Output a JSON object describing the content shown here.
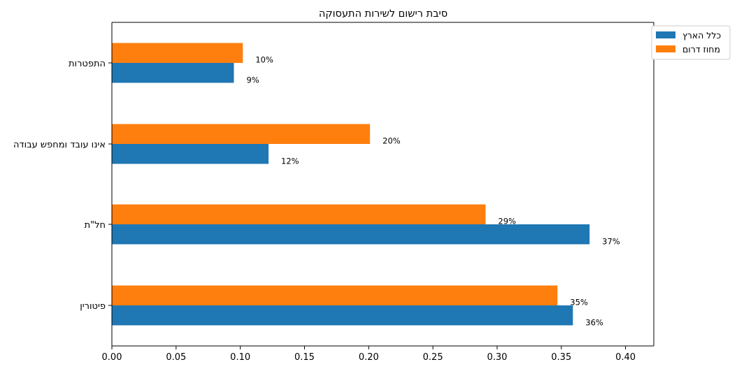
{
  "chart_data": {
    "type": "bar",
    "orientation": "horizontal",
    "title": "סיבת רישום לשירות התעסוקה",
    "xlabel": "",
    "ylabel": "",
    "xlim": [
      0,
      0.422
    ],
    "xticks": [
      "0.00",
      "0.05",
      "0.10",
      "0.15",
      "0.20",
      "0.25",
      "0.30",
      "0.35",
      "0.40"
    ],
    "xtick_values": [
      0,
      0.05,
      0.1,
      0.15,
      0.2,
      0.25,
      0.3,
      0.35,
      0.4
    ],
    "categories": [
      "פיטורין",
      "חל\"ת",
      "אינו עובד ומחפש עבודה",
      "התפטרות"
    ],
    "series": [
      {
        "name": "כלל הארץ",
        "color": "#1f77b4",
        "values": [
          0.359,
          0.372,
          0.122,
          0.095
        ],
        "labels": [
          "36%",
          "37%",
          "12%",
          "9%"
        ]
      },
      {
        "name": "מחוז דרום",
        "color": "#ff7f0e",
        "values": [
          0.347,
          0.291,
          0.201,
          0.102
        ],
        "labels": [
          "35%",
          "29%",
          "20%",
          "10%"
        ]
      }
    ],
    "legend_position": "top-right, outside plot",
    "grid": false
  }
}
